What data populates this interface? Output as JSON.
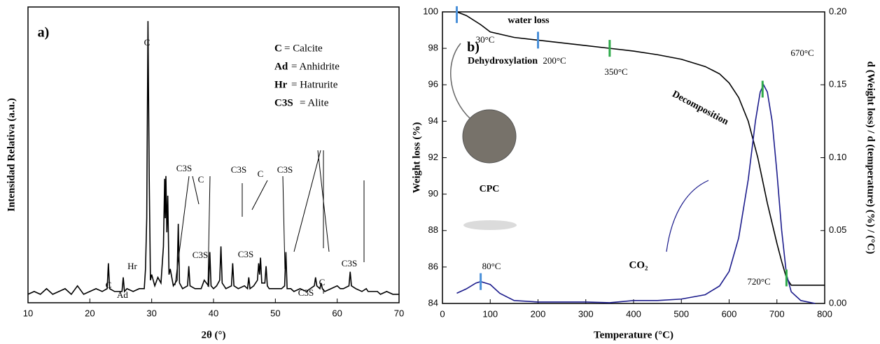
{
  "chart_data": [
    {
      "type": "line",
      "xlabel": "2θ (°)",
      "ylabel": "Intensidad Relativa (a.u.)",
      "annotations": [
        "a)",
        "C",
        "C3S",
        "C",
        "C3S",
        "C",
        "C3S",
        "C",
        "Ad",
        "Hr",
        "C3S",
        "C3S",
        "C3S",
        "C",
        "C3S"
      ],
      "legend": [
        {
          "abbr": "C",
          "text": "= Calcite"
        },
        {
          "abbr": "Ad",
          "text": "= Anhidrite"
        },
        {
          "abbr": "Hr",
          "text": "= Hatrurite"
        },
        {
          "abbr": "C3S",
          "text": "= Alite"
        }
      ],
      "xlim": [
        10,
        70
      ],
      "xticks": [
        10,
        20,
        30,
        40,
        50,
        60,
        70
      ],
      "ylim": [
        0,
        105
      ],
      "series": [
        {
          "color": "#000000",
          "x": [
            10,
            11,
            12,
            13,
            14,
            15,
            16,
            17,
            18,
            19,
            20,
            21,
            22,
            22.8,
            23.0,
            23.2,
            24,
            25.2,
            25.4,
            25.6,
            26,
            27,
            28,
            28.8,
            29.0,
            29.2,
            29.4,
            29.6,
            29.8,
            30.0,
            30.5,
            31.0,
            31.5,
            31.9,
            32.1,
            32.2,
            32.3,
            32.45,
            32.6,
            32.8,
            33.0,
            33.5,
            34.1,
            34.3,
            34.5,
            35,
            35.8,
            36.0,
            36.2,
            37,
            38,
            38.5,
            39.2,
            39.4,
            39.6,
            40,
            40.5,
            41.0,
            41.2,
            41.4,
            42,
            42.9,
            43.1,
            43.3,
            44,
            45,
            45.5,
            45.7,
            45.9,
            46.5,
            47.1,
            47.3,
            47.45,
            47.6,
            47.8,
            48.3,
            48.5,
            48.7,
            49,
            50,
            51,
            51.5,
            51.7,
            51.9,
            52.5,
            53,
            54,
            55,
            56.3,
            56.5,
            56.7,
            57.2,
            57.4,
            57.6,
            58,
            59,
            60,
            60.5,
            61,
            61.9,
            62.1,
            62.3,
            63,
            64,
            64.7,
            65,
            66,
            66.5,
            67,
            68,
            69,
            70
          ],
          "values": [
            3,
            4,
            3,
            5,
            3,
            4,
            5,
            3,
            6,
            3,
            4,
            5,
            4,
            5,
            14,
            5,
            4,
            4,
            9,
            4,
            5,
            4,
            5,
            5,
            12,
            30,
            100,
            45,
            8,
            10,
            6,
            9,
            7,
            20,
            44,
            30,
            45,
            25,
            38,
            10,
            12,
            6,
            8,
            28,
            7,
            5,
            6,
            13,
            6,
            5,
            5,
            8,
            6,
            18,
            6,
            5,
            6,
            8,
            20,
            7,
            5,
            6,
            14,
            6,
            5,
            6,
            5,
            9,
            5,
            6,
            8,
            14,
            10,
            16,
            7,
            7,
            13,
            6,
            5,
            5,
            5,
            6,
            18,
            5,
            5,
            4,
            5,
            4,
            6,
            9,
            6,
            5,
            7,
            5,
            4,
            5,
            6,
            5,
            5,
            6,
            11,
            6,
            5,
            4,
            5,
            4,
            4,
            4,
            3,
            4,
            3,
            3
          ]
        }
      ]
    },
    {
      "type": "line",
      "xlabel": "Temperature (°C)",
      "ylabel": "Weight loss (%)",
      "y2label": "d (Weight loss) / d (temperature) (%) / (°C)",
      "annotations": [
        "water loss",
        "30°C",
        "200°C",
        "350°C",
        "b)",
        "Dehydroxylation",
        "Decomposition",
        "670°C",
        "80°C",
        "720°C",
        "CPC",
        "CO₂"
      ],
      "xlim": [
        0,
        800
      ],
      "xticks": [
        0,
        100,
        200,
        300,
        400,
        500,
        600,
        700,
        800
      ],
      "ylim": [
        84,
        100
      ],
      "yticks": [
        84,
        86,
        88,
        90,
        92,
        94,
        96,
        98,
        100
      ],
      "y2lim": [
        0,
        0.2
      ],
      "y2ticks": [
        {
          "value": 0,
          "label": "0.00"
        },
        0.05,
        {
          "value": 0.1,
          "label": "0.10"
        },
        0.15,
        {
          "value": 0.2,
          "label": "0.20"
        }
      ],
      "series": [
        {
          "color": "#000000",
          "x": [
            30,
            50,
            80,
            100,
            150,
            200,
            250,
            300,
            350,
            400,
            450,
            500,
            550,
            580,
            600,
            620,
            640,
            660,
            680,
            700,
            710,
            720,
            730,
            800
          ],
          "values": [
            100,
            99.8,
            99.3,
            98.9,
            98.6,
            98.45,
            98.3,
            98.15,
            98.0,
            97.85,
            97.65,
            97.4,
            97.0,
            96.6,
            96.1,
            95.3,
            94.0,
            92.0,
            89.5,
            87.3,
            86.3,
            85.4,
            85.0,
            85.0
          ]
        },
        {
          "color": "#1c1c8c",
          "axis": "y2",
          "x": [
            30,
            50,
            70,
            80,
            100,
            120,
            150,
            200,
            300,
            350,
            400,
            450,
            500,
            550,
            580,
            600,
            620,
            640,
            655,
            665,
            672,
            680,
            690,
            700,
            710,
            720,
            730,
            750,
            780
          ],
          "values": [
            0.007,
            0.01,
            0.014,
            0.015,
            0.013,
            0.007,
            0.002,
            0.001,
            0.001,
            0.0005,
            0.002,
            0.002,
            0.003,
            0.006,
            0.012,
            0.022,
            0.045,
            0.085,
            0.125,
            0.145,
            0.15,
            0.145,
            0.125,
            0.09,
            0.05,
            0.02,
            0.008,
            0.002,
            0
          ]
        }
      ]
    }
  ]
}
